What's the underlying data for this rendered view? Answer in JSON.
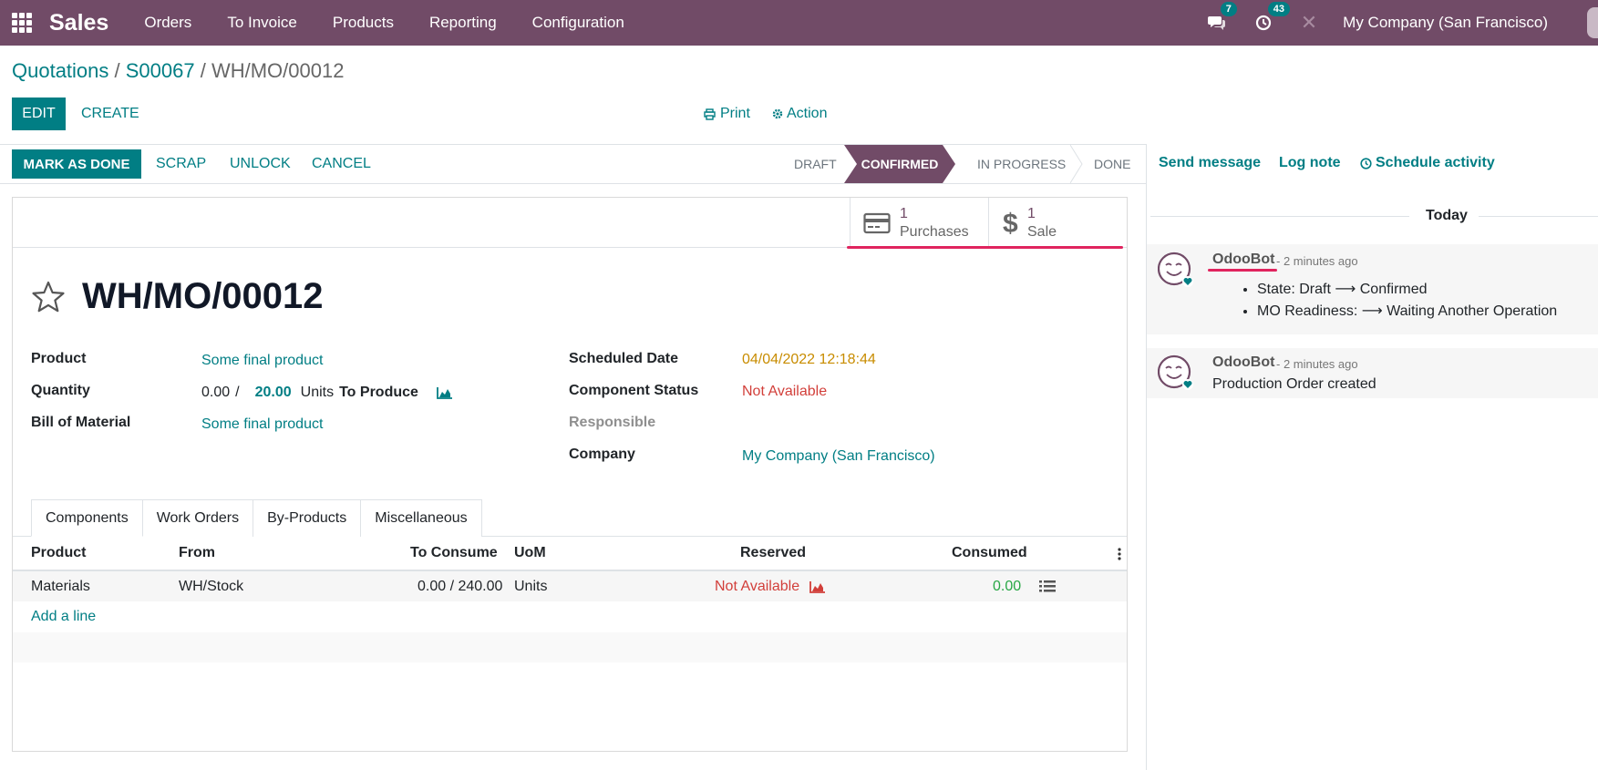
{
  "topnav": {
    "app_name": "Sales",
    "menu": [
      "Orders",
      "To Invoice",
      "Products",
      "Reporting",
      "Configuration"
    ],
    "messages_count": "7",
    "activities_count": "43",
    "company": "My Company (San Francisco)"
  },
  "breadcrumb": {
    "item1": "Quotations",
    "sep1": " / ",
    "item2": "S00067",
    "sep2": " / ",
    "current": "WH/MO/00012"
  },
  "control": {
    "edit": "EDIT",
    "create": "CREATE",
    "print": "Print",
    "action": "Action"
  },
  "statusbar": {
    "mark_done": "MARK AS DONE",
    "scrap": "SCRAP",
    "unlock": "UNLOCK",
    "cancel": "CANCEL",
    "stages": {
      "draft": "DRAFT",
      "confirmed": "CONFIRMED",
      "in_progress": "IN PROGRESS",
      "done": "DONE"
    },
    "active_stage": "confirmed"
  },
  "smart_buttons": {
    "purchases_count": "1",
    "purchases_label": "Purchases",
    "sale_count": "1",
    "sale_label": "Sale"
  },
  "record": {
    "title": "WH/MO/00012",
    "fields": {
      "product_label": "Product",
      "product_value": "Some final product",
      "quantity_label": "Quantity",
      "quantity_done": "0.00",
      "quantity_sep": "/",
      "quantity_total": "20.00",
      "quantity_uom": "Units",
      "to_produce": "To Produce",
      "bom_label": "Bill of Material",
      "bom_value": "Some final product",
      "scheduled_label": "Scheduled Date",
      "scheduled_value": "04/04/2022 12:18:44",
      "component_status_label": "Component Status",
      "component_status_value": "Not Available",
      "responsible_label": "Responsible",
      "company_label": "Company",
      "company_value": "My Company (San Francisco)"
    }
  },
  "tabs": [
    "Components",
    "Work Orders",
    "By-Products",
    "Miscellaneous"
  ],
  "active_tab": "Components",
  "components_table": {
    "headers": {
      "product": "Product",
      "from": "From",
      "to_consume": "To Consume",
      "uom": "UoM",
      "reserved": "Reserved",
      "consumed": "Consumed"
    },
    "rows": [
      {
        "product": "Materials",
        "from": "WH/Stock",
        "to_consume": "0.00 / 240.00",
        "uom": "Units",
        "reserved": "Not Available",
        "consumed": "0.00"
      }
    ],
    "add_line": "Add a line"
  },
  "chatter": {
    "send_message": "Send message",
    "log_note": "Log note",
    "schedule_activity": "Schedule activity",
    "today": "Today",
    "messages": [
      {
        "author": "OdooBot",
        "time": "- 2 minutes ago",
        "items": [
          "State: Draft ⟶ Confirmed",
          "MO Readiness: ⟶ Waiting Another Operation"
        ]
      },
      {
        "author": "OdooBot",
        "time": "- 2 minutes ago",
        "body": "Production Order created"
      }
    ]
  },
  "colors": {
    "brand": "#714B67",
    "accent": "#017E84",
    "danger": "#d23f3a",
    "warning": "#c88c00",
    "highlight": "#e0245e"
  }
}
